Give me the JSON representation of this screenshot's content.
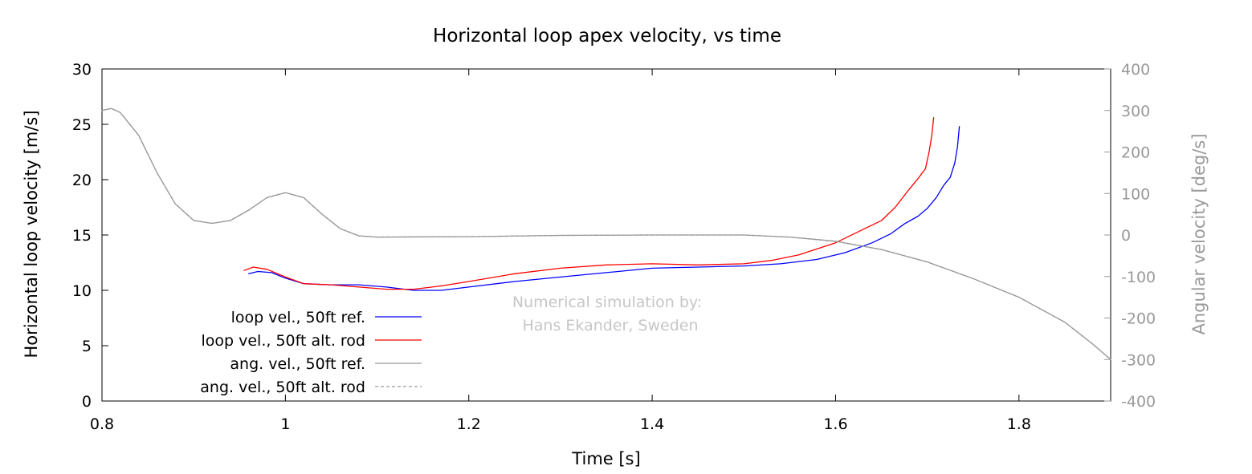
{
  "chart_data": {
    "type": "line",
    "title": "Horizontal loop apex velocity, vs time",
    "xlabel": "Time [s]",
    "ylabel": "Horizontal loop velocity [m/s]",
    "y2label": "Angular velocity [deg/s]",
    "xlim": [
      0.8,
      1.9
    ],
    "ylim": [
      0,
      30
    ],
    "y2lim": [
      -400,
      400
    ],
    "xticks": [
      "0.8",
      "1",
      "1.2",
      "1.4",
      "1.6",
      "1.8"
    ],
    "xtick_values": [
      0.8,
      1.0,
      1.2,
      1.4,
      1.6,
      1.8
    ],
    "yticks": [
      "0",
      "5",
      "10",
      "15",
      "20",
      "25",
      "30"
    ],
    "ytick_values": [
      0,
      5,
      10,
      15,
      20,
      25,
      30
    ],
    "y2ticks": [
      "-400",
      "-300",
      "-200",
      "-100",
      "0",
      "100",
      "200",
      "300",
      "400"
    ],
    "y2tick_values": [
      -400,
      -300,
      -200,
      -100,
      0,
      100,
      200,
      300,
      400
    ],
    "grid": false,
    "legend_position": "bottom-left",
    "annotation": [
      "Numerical simulation by:",
      "Hans Ekander, Sweden"
    ],
    "colors": {
      "ref": "#0000ff",
      "alt": "#ff0000",
      "ang": "#999999"
    },
    "series": [
      {
        "name": "loop vel., 50ft ref.",
        "axis": "left",
        "style": "solid",
        "color": "#0000ff",
        "points": [
          [
            0.96,
            11.5
          ],
          [
            0.97,
            11.7
          ],
          [
            0.985,
            11.6
          ],
          [
            1.0,
            11.1
          ],
          [
            1.02,
            10.6
          ],
          [
            1.05,
            10.5
          ],
          [
            1.08,
            10.5
          ],
          [
            1.11,
            10.3
          ],
          [
            1.14,
            10.0
          ],
          [
            1.17,
            10.0
          ],
          [
            1.2,
            10.3
          ],
          [
            1.25,
            10.8
          ],
          [
            1.3,
            11.2
          ],
          [
            1.35,
            11.6
          ],
          [
            1.4,
            12.0
          ],
          [
            1.45,
            12.1
          ],
          [
            1.5,
            12.2
          ],
          [
            1.54,
            12.4
          ],
          [
            1.58,
            12.8
          ],
          [
            1.61,
            13.4
          ],
          [
            1.64,
            14.3
          ],
          [
            1.66,
            15.1
          ],
          [
            1.675,
            16.0
          ],
          [
            1.69,
            16.7
          ],
          [
            1.7,
            17.4
          ],
          [
            1.71,
            18.4
          ],
          [
            1.718,
            19.5
          ],
          [
            1.725,
            20.2
          ],
          [
            1.73,
            21.5
          ],
          [
            1.733,
            23.0
          ],
          [
            1.735,
            24.8
          ]
        ]
      },
      {
        "name": "loop vel., 50ft alt. rod",
        "axis": "left",
        "style": "solid",
        "color": "#ff0000",
        "points": [
          [
            0.955,
            11.8
          ],
          [
            0.965,
            12.1
          ],
          [
            0.98,
            11.9
          ],
          [
            1.0,
            11.2
          ],
          [
            1.02,
            10.6
          ],
          [
            1.05,
            10.5
          ],
          [
            1.08,
            10.3
          ],
          [
            1.11,
            10.1
          ],
          [
            1.14,
            10.1
          ],
          [
            1.17,
            10.4
          ],
          [
            1.2,
            10.8
          ],
          [
            1.25,
            11.5
          ],
          [
            1.3,
            12.0
          ],
          [
            1.35,
            12.3
          ],
          [
            1.4,
            12.4
          ],
          [
            1.45,
            12.3
          ],
          [
            1.5,
            12.4
          ],
          [
            1.53,
            12.7
          ],
          [
            1.56,
            13.2
          ],
          [
            1.6,
            14.3
          ],
          [
            1.63,
            15.5
          ],
          [
            1.65,
            16.3
          ],
          [
            1.665,
            17.5
          ],
          [
            1.68,
            19.1
          ],
          [
            1.69,
            20.1
          ],
          [
            1.698,
            21.0
          ],
          [
            1.702,
            22.5
          ],
          [
            1.705,
            24.0
          ],
          [
            1.707,
            25.6
          ]
        ]
      },
      {
        "name": "ang. vel., 50ft ref.",
        "axis": "right",
        "style": "solid",
        "color": "#999999",
        "points": [
          [
            0.8,
            300
          ],
          [
            0.81,
            305
          ],
          [
            0.82,
            295
          ],
          [
            0.84,
            240
          ],
          [
            0.86,
            150
          ],
          [
            0.88,
            75
          ],
          [
            0.9,
            35
          ],
          [
            0.92,
            28
          ],
          [
            0.94,
            35
          ],
          [
            0.96,
            60
          ],
          [
            0.98,
            90
          ],
          [
            1.0,
            102
          ],
          [
            1.02,
            90
          ],
          [
            1.04,
            50
          ],
          [
            1.06,
            15
          ],
          [
            1.08,
            -2
          ],
          [
            1.1,
            -5
          ],
          [
            1.2,
            -4
          ],
          [
            1.3,
            -1
          ],
          [
            1.4,
            0
          ],
          [
            1.5,
            0
          ],
          [
            1.55,
            -5
          ],
          [
            1.6,
            -15
          ],
          [
            1.65,
            -35
          ],
          [
            1.7,
            -65
          ],
          [
            1.75,
            -105
          ],
          [
            1.8,
            -150
          ],
          [
            1.85,
            -210
          ],
          [
            1.88,
            -262
          ],
          [
            1.9,
            -300
          ]
        ]
      },
      {
        "name": "ang. vel., 50ft alt. rod",
        "axis": "right",
        "style": "dashed",
        "color": "#999999",
        "points": [
          [
            0.8,
            300
          ],
          [
            0.81,
            305
          ],
          [
            0.82,
            295
          ],
          [
            0.84,
            240
          ],
          [
            0.86,
            150
          ],
          [
            0.88,
            75
          ],
          [
            0.9,
            35
          ],
          [
            0.92,
            28
          ],
          [
            0.94,
            35
          ],
          [
            0.96,
            60
          ],
          [
            0.98,
            90
          ],
          [
            1.0,
            102
          ],
          [
            1.02,
            90
          ],
          [
            1.04,
            50
          ],
          [
            1.06,
            15
          ],
          [
            1.08,
            -2
          ],
          [
            1.1,
            -5
          ],
          [
            1.2,
            -4
          ],
          [
            1.3,
            -1
          ],
          [
            1.4,
            0
          ],
          [
            1.5,
            0
          ],
          [
            1.55,
            -5
          ],
          [
            1.6,
            -15
          ],
          [
            1.65,
            -35
          ],
          [
            1.7,
            -65
          ],
          [
            1.75,
            -105
          ],
          [
            1.8,
            -150
          ],
          [
            1.85,
            -210
          ],
          [
            1.88,
            -262
          ],
          [
            1.9,
            -300
          ]
        ]
      }
    ]
  }
}
